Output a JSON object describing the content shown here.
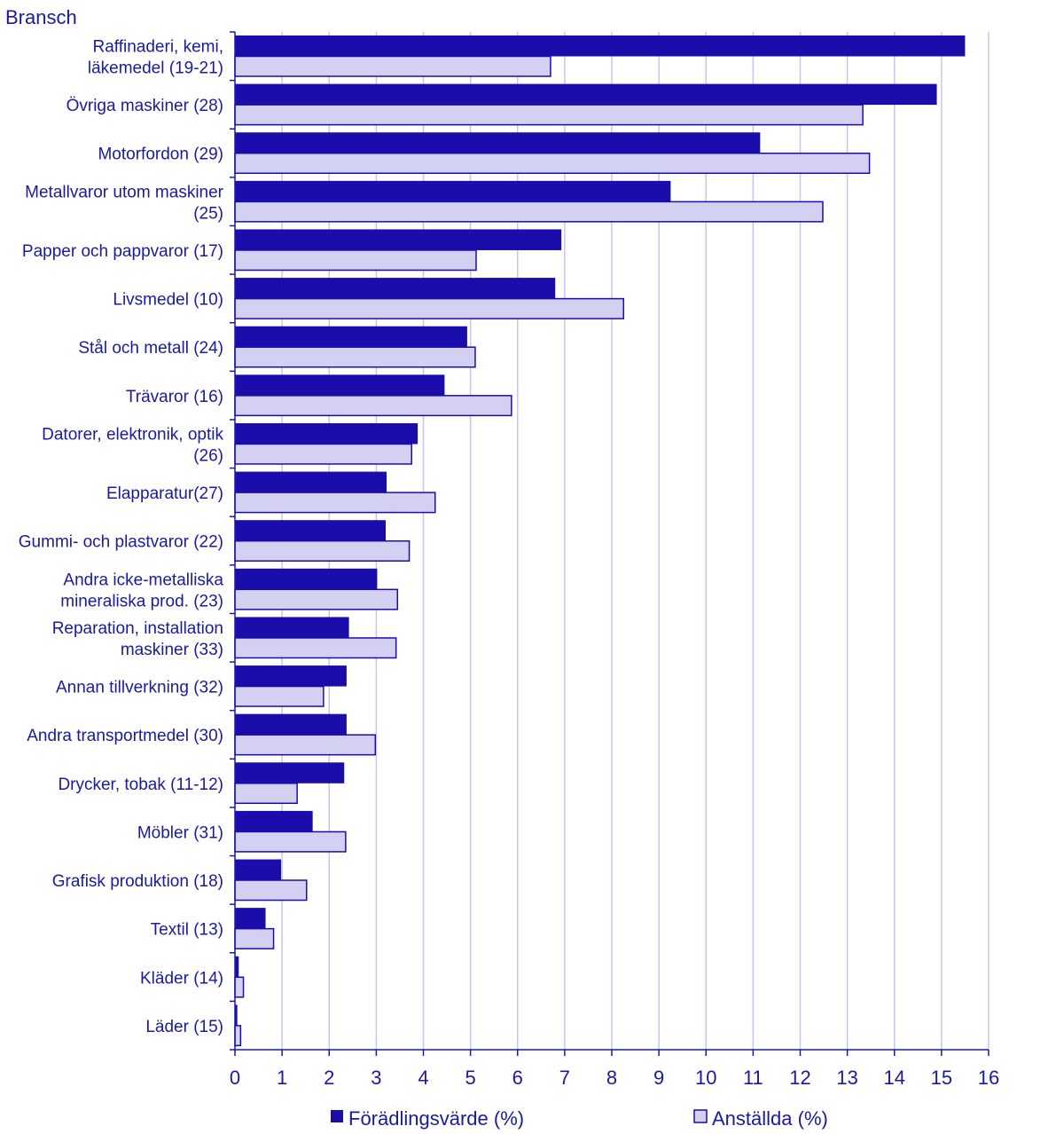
{
  "colors": {
    "text": "#1a1aa0",
    "series1_fill": "#1a0dab",
    "series2_fill": "#d3d0f2",
    "series2_stroke": "#1a0dab",
    "grid": "#c8c6ea",
    "axis": "#1a1aa0"
  },
  "chart_data": {
    "type": "bar",
    "orientation": "horizontal",
    "title": "",
    "ylabel": "Bransch",
    "xlabel": "",
    "xlim": [
      0,
      16
    ],
    "xticks": [
      "0",
      "1",
      "2",
      "3",
      "4",
      "5",
      "6",
      "7",
      "8",
      "9",
      "10",
      "11",
      "12",
      "13",
      "14",
      "15",
      "16"
    ],
    "grid": true,
    "legend_position": "bottom",
    "categories": [
      [
        "Raffinaderi, kemi,",
        "läkemedel (19-21)"
      ],
      [
        "Övriga maskiner (28)"
      ],
      [
        "Motorfordon (29)"
      ],
      [
        "Metallvaror utom maskiner",
        "(25)"
      ],
      [
        "Papper och pappvaror (17)"
      ],
      [
        "Livsmedel (10)"
      ],
      [
        "Stål och metall (24)"
      ],
      [
        "Trävaror (16)"
      ],
      [
        "Datorer, elektronik, optik",
        "(26)"
      ],
      [
        "Elapparatur(27)"
      ],
      [
        "Gummi- och plastvaror (22)"
      ],
      [
        "Andra icke-metalliska",
        "mineraliska prod. (23)"
      ],
      [
        "Reparation, installation",
        "maskiner (33)"
      ],
      [
        "Annan tillverkning (32)"
      ],
      [
        "Andra transportmedel (30)"
      ],
      [
        "Drycker, tobak (11-12)"
      ],
      [
        "Möbler (31)"
      ],
      [
        "Grafisk produktion (18)"
      ],
      [
        "Textil (13)"
      ],
      [
        "Kläder (14)"
      ],
      [
        "Läder (15)"
      ]
    ],
    "series": [
      {
        "name": "Förädlingsvärde (%)",
        "values": [
          15.5,
          14.9,
          11.15,
          9.25,
          6.93,
          6.8,
          4.93,
          4.45,
          3.88,
          3.22,
          3.2,
          3.02,
          2.42,
          2.37,
          2.37,
          2.32,
          1.65,
          0.98,
          0.65,
          0.08,
          0.05
        ]
      },
      {
        "name": "Anställda (%)",
        "values": [
          6.7,
          13.33,
          13.47,
          12.48,
          5.12,
          8.25,
          5.1,
          5.87,
          3.75,
          4.25,
          3.7,
          3.45,
          3.42,
          1.88,
          2.98,
          1.32,
          2.35,
          1.52,
          0.82,
          0.18,
          0.12
        ]
      }
    ]
  }
}
